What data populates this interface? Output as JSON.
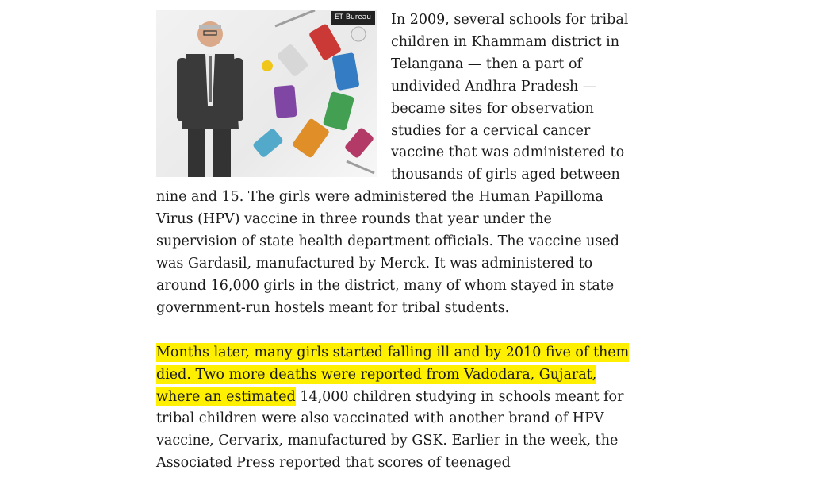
{
  "image": {
    "credit": "ET Bureau",
    "icon": "vaccine-illustration-photo"
  },
  "paragraphs": [
    {
      "text": "In 2009, several schools for tribal children in Khammam district in Telangana — then a part of undivided Andhra Pradesh — became sites for observation studies for a cervical cancer vaccine that was administered to thousands of girls aged between nine and 15. The girls were administered the Human Papilloma Virus (HPV) vaccine in three rounds that year under the supervision of state health department officials. The vaccine used was Gardasil, manufactured by Merck. It was administered to around 16,000 girls in the district, many of whom stayed in state government-run hostels meant for tribal students."
    },
    {
      "highlight": "Months later, many girls started falling ill and by 2010 five of them died. Two more deaths were reported from Vadodara, Gujarat, where an estimated",
      "text": " 14,000 children studying in schools meant for tribal children were also vaccinated with another brand of HPV vaccine, Cervarix, manufactured by GSK. Earlier in the week, the Associated Press reported that scores of teenaged"
    }
  ],
  "colors": {
    "highlight": "#ffef00",
    "credit_bg": "#222222"
  }
}
